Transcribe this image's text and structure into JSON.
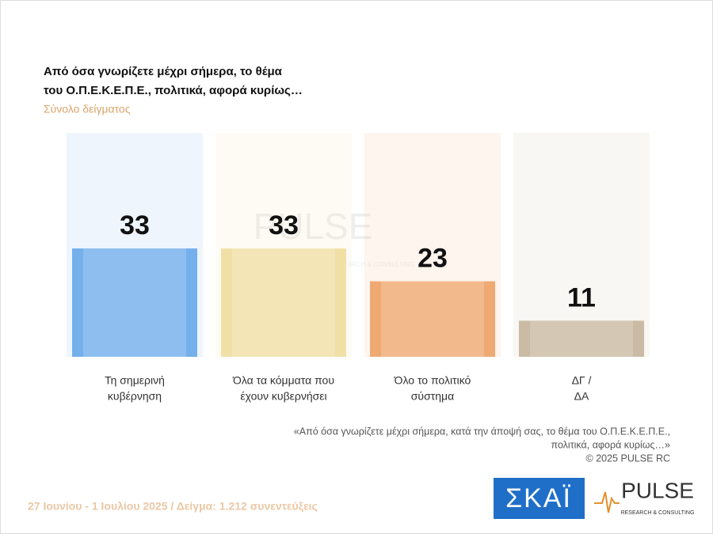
{
  "chart_data": {
    "type": "bar",
    "title": [
      "Από όσα γνωρίζετε μέχρι σήμερα, το θέμα",
      "του  Ο.Π.Ε.Κ.Ε.Π.Ε.,  πολιτικά, αφορά κυρίως…"
    ],
    "subtitle": "Σύνολο δείγματος",
    "categories": [
      [
        "Τη σημερινή",
        "κυβέρνηση"
      ],
      [
        "Όλα τα κόμματα που",
        "έχουν κυβερνήσει"
      ],
      [
        "Όλο το πολιτικό",
        "σύστημα"
      ],
      [
        "ΔΓ /",
        "ΔΑ"
      ]
    ],
    "values": [
      33,
      33,
      23,
      11
    ],
    "colors": [
      "#74b0ec",
      "#f1e0a6",
      "#efaa74",
      "#cbbba4"
    ],
    "note": [
      "«Από όσα γνωρίζετε μέχρι σήμερα, κατά την άποψή σας, το θέμα του Ο.Π.Ε.Κ.Ε.Π.Ε.,",
      "πολιτικά, αφορά κυρίως…»",
      "©  2025  PULSE RC"
    ],
    "footer": "27 Ιουνίου - 1 Ιουλίου 2025  /  Δείγμα:  1.212 συνεντεύξεις",
    "logos": {
      "skai": "ΣΚΑΪ",
      "pulse": "PULSE",
      "pulse_tagline": "RESEARCH & CONSULTING"
    }
  }
}
